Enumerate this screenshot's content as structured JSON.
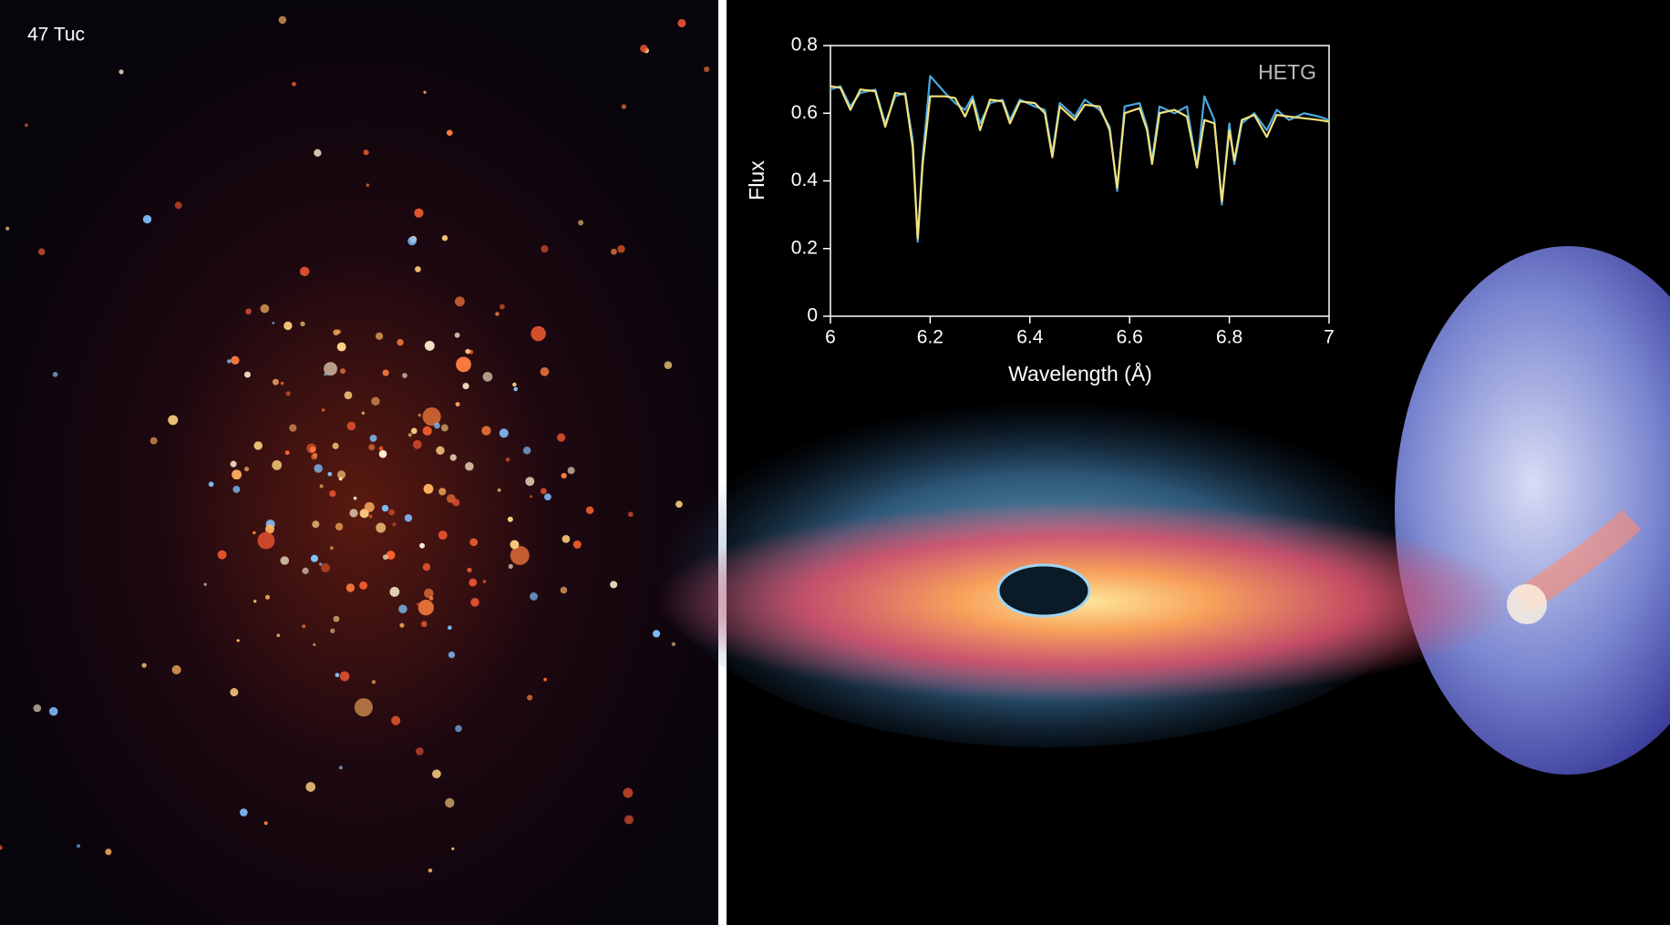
{
  "image_label": "47 Tuc",
  "chart_data": {
    "type": "line",
    "annotation": "HETG",
    "xlabel": "Wavelength (Å)",
    "ylabel": "Flux",
    "xlim": [
      6,
      7
    ],
    "xticks": [
      6,
      6.2,
      6.4,
      6.6,
      6.8,
      7
    ],
    "ylim": [
      0,
      0.8
    ],
    "yticks": [
      0,
      0.2,
      0.4,
      0.6,
      0.8
    ],
    "x": [
      6.0,
      6.02,
      6.04,
      6.06,
      6.09,
      6.11,
      6.13,
      6.15,
      6.165,
      6.175,
      6.185,
      6.2,
      6.23,
      6.25,
      6.27,
      6.285,
      6.3,
      6.32,
      6.345,
      6.36,
      6.38,
      6.41,
      6.43,
      6.445,
      6.46,
      6.49,
      6.51,
      6.54,
      6.56,
      6.575,
      6.59,
      6.62,
      6.635,
      6.645,
      6.66,
      6.69,
      6.715,
      6.735,
      6.75,
      6.77,
      6.785,
      6.8,
      6.81,
      6.825,
      6.85,
      6.875,
      6.895,
      6.92,
      6.95,
      6.98,
      7.0
    ],
    "series": [
      {
        "color": "#4aa8e0",
        "values": [
          0.67,
          0.68,
          0.62,
          0.66,
          0.67,
          0.57,
          0.65,
          0.66,
          0.52,
          0.22,
          0.47,
          0.71,
          0.66,
          0.63,
          0.61,
          0.65,
          0.57,
          0.63,
          0.64,
          0.58,
          0.64,
          0.62,
          0.61,
          0.48,
          0.63,
          0.59,
          0.64,
          0.61,
          0.56,
          0.37,
          0.62,
          0.63,
          0.56,
          0.46,
          0.62,
          0.6,
          0.62,
          0.44,
          0.65,
          0.58,
          0.33,
          0.57,
          0.45,
          0.57,
          0.6,
          0.55,
          0.61,
          0.58,
          0.6,
          0.59,
          0.58
        ]
      },
      {
        "color": "#f3e27a",
        "values": [
          0.68,
          0.675,
          0.61,
          0.67,
          0.665,
          0.56,
          0.66,
          0.655,
          0.5,
          0.23,
          0.45,
          0.65,
          0.65,
          0.645,
          0.59,
          0.64,
          0.55,
          0.64,
          0.635,
          0.57,
          0.635,
          0.63,
          0.6,
          0.47,
          0.62,
          0.58,
          0.625,
          0.62,
          0.55,
          0.38,
          0.6,
          0.615,
          0.55,
          0.45,
          0.6,
          0.61,
          0.59,
          0.44,
          0.58,
          0.57,
          0.34,
          0.55,
          0.46,
          0.58,
          0.595,
          0.53,
          0.595,
          0.59,
          0.585,
          0.58,
          0.575
        ]
      }
    ]
  }
}
